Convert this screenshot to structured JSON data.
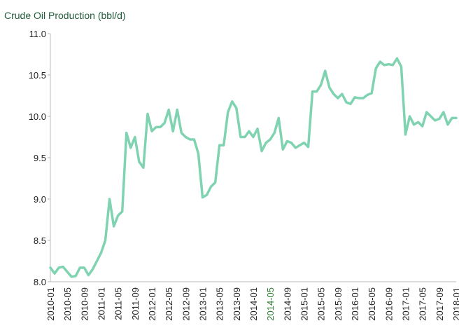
{
  "chart_data": {
    "type": "line",
    "title": "Crude Oil Production (bbl/d)",
    "categories": [
      "2010-01",
      null,
      null,
      null,
      "2010-05",
      null,
      null,
      null,
      "2010-09",
      null,
      null,
      null,
      "2011-01",
      null,
      null,
      null,
      "2011-05",
      null,
      null,
      null,
      "2011-09",
      null,
      null,
      null,
      "2012-01",
      null,
      null,
      null,
      "2012-05",
      null,
      null,
      null,
      "2012-09",
      null,
      null,
      null,
      "2013-01",
      null,
      null,
      null,
      "2013-05",
      null,
      null,
      null,
      "2013-09",
      null,
      null,
      null,
      "2014-01",
      null,
      null,
      null,
      "2014-05",
      null,
      null,
      null,
      "2014-09",
      null,
      null,
      null,
      "2015-01",
      null,
      null,
      null,
      "2015-05",
      null,
      null,
      null,
      "2015-09",
      null,
      null,
      null,
      "2016-01",
      null,
      null,
      null,
      "2016-05",
      null,
      null,
      null,
      "2016-09",
      null,
      null,
      null,
      "2017-01",
      null,
      null,
      null,
      "2017-05",
      null,
      null,
      null,
      "2017-09",
      null,
      null,
      null,
      "2018-01"
    ],
    "series": [
      {
        "name": "Crude Oil Production",
        "color": "#7fd3b1",
        "values": [
          8.17,
          8.1,
          8.17,
          8.18,
          8.12,
          8.06,
          8.07,
          8.17,
          8.17,
          8.08,
          8.15,
          8.25,
          8.35,
          8.5,
          9.0,
          8.67,
          8.8,
          8.85,
          9.8,
          9.62,
          9.75,
          9.45,
          9.38,
          10.03,
          9.82,
          9.87,
          9.87,
          9.92,
          10.08,
          9.82,
          10.08,
          9.8,
          9.75,
          9.72,
          9.72,
          9.55,
          9.02,
          9.05,
          9.15,
          9.2,
          9.65,
          9.65,
          10.05,
          10.18,
          10.1,
          9.75,
          9.75,
          9.82,
          9.75,
          9.85,
          9.58,
          9.68,
          9.72,
          9.8,
          9.98,
          9.6,
          9.7,
          9.68,
          9.62,
          9.65,
          9.68,
          9.63,
          10.3,
          10.3,
          10.38,
          10.55,
          10.35,
          10.27,
          10.22,
          10.27,
          10.17,
          10.15,
          10.23,
          10.22,
          10.22,
          10.26,
          10.28,
          10.58,
          10.66,
          10.62,
          10.63,
          10.62,
          10.7,
          10.6,
          9.78,
          10.0,
          9.9,
          9.93,
          9.88,
          10.05,
          10.0,
          9.95,
          9.97,
          10.05,
          9.9,
          9.98,
          9.98
        ]
      }
    ],
    "ylim": [
      8,
      11
    ],
    "yticks": [
      {
        "value": 8,
        "label": "8.0"
      },
      {
        "value": 8.5,
        "label": "8.5"
      },
      {
        "value": 9,
        "label": "9.0"
      },
      {
        "value": 9.5,
        "label": "9.5"
      },
      {
        "value": 10,
        "label": "10.0"
      },
      {
        "value": 10.5,
        "label": "10.5"
      },
      {
        "value": 11,
        "label": "11.0"
      }
    ],
    "grid": false,
    "highlight_index": 52,
    "highlight_color": "#2e7d32"
  }
}
